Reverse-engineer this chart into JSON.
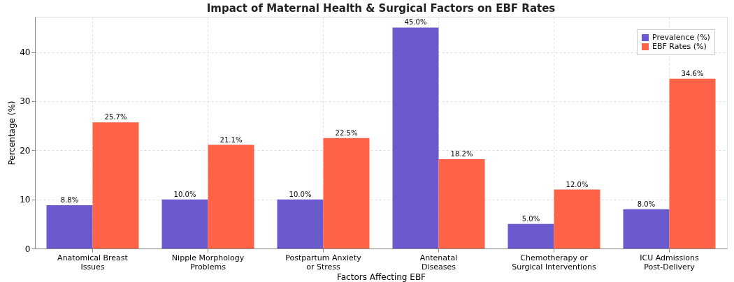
{
  "chart_data": {
    "type": "bar",
    "title": "Impact of Maternal Health & Surgical Factors on EBF Rates",
    "xlabel": "Factors Affecting EBF",
    "ylabel": "Percentage (%)",
    "categories": [
      "Anatomical Breast\nIssues",
      "Nipple Morphology\nProblems",
      "Postpartum Anxiety\nor Stress",
      "Antenatal\nDiseases",
      "Chemotherapy or\nSurgical Interventions",
      "ICU Admissions\nPost-Delivery"
    ],
    "series": [
      {
        "name": "Prevalence (%)",
        "color": "#6a5acd",
        "values": [
          8.8,
          10.0,
          10.0,
          45.0,
          5.0,
          8.0
        ],
        "value_labels": [
          "8.8%",
          "10.0%",
          "10.0%",
          "45.0%",
          "5.0%",
          "8.0%"
        ]
      },
      {
        "name": "EBF Rates (%)",
        "color": "#ff6347",
        "values": [
          25.7,
          21.1,
          22.5,
          18.2,
          12.0,
          34.6
        ],
        "value_labels": [
          "25.7%",
          "21.1%",
          "22.5%",
          "18.2%",
          "12.0%",
          "34.6%"
        ]
      }
    ],
    "ylim": [
      0,
      47.2
    ],
    "yticks": [
      0,
      10,
      20,
      30,
      40
    ],
    "grid": true,
    "legend": "top right"
  }
}
